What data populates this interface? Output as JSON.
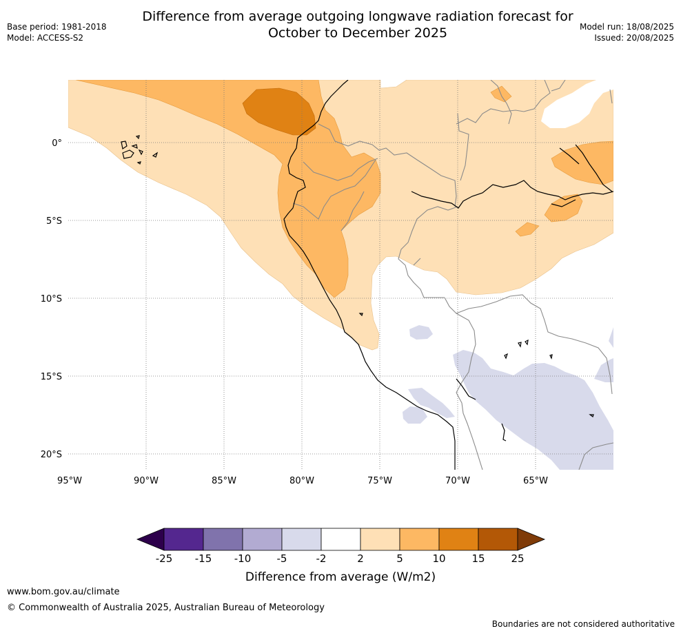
{
  "title": {
    "line1": "Difference from average outgoing longwave radiation forecast for",
    "line2": "October to December 2025"
  },
  "meta_left": {
    "base_period": "Base period: 1981-2018",
    "model": "Model: ACCESS-S2"
  },
  "meta_right": {
    "model_run": "Model run: 18/08/2025",
    "issued": "Issued: 20/08/2025"
  },
  "map": {
    "lon_labels": [
      "95°W",
      "90°W",
      "85°W",
      "80°W",
      "75°W",
      "70°W",
      "65°W"
    ],
    "lat_labels": [
      "0°",
      "5°S",
      "10°S",
      "15°S",
      "20°S"
    ],
    "extent": {
      "lon_min": -95,
      "lon_max": -60,
      "lat_min": -21,
      "lat_max": 4
    }
  },
  "colorbar": {
    "title": "Difference from average (W/m2)",
    "ticks": [
      "-25",
      "-15",
      "-10",
      "-5",
      "-2",
      "2",
      "5",
      "10",
      "15",
      "25"
    ],
    "bins": [
      {
        "from": "-25",
        "to": "-15",
        "color": "#54278f"
      },
      {
        "from": "-15",
        "to": "-10",
        "color": "#8073ac"
      },
      {
        "from": "-10",
        "to": "-5",
        "color": "#b2abd2"
      },
      {
        "from": "-5",
        "to": "-2",
        "color": "#d8daeb"
      },
      {
        "from": "-2",
        "to": "2",
        "color": "#ffffff"
      },
      {
        "from": "2",
        "to": "5",
        "color": "#fee0b6"
      },
      {
        "from": "5",
        "to": "10",
        "color": "#fdb863"
      },
      {
        "from": "10",
        "to": "15",
        "color": "#e08214"
      },
      {
        "from": "15",
        "to": "25",
        "color": "#b35806"
      }
    ],
    "extend_low_color": "#2d004b",
    "extend_high_color": "#7f3b08"
  },
  "footer": {
    "website": "www.bom.gov.au/climate",
    "copyright": "© Commonwealth of Australia 2025, Australian Bureau of Meteorology",
    "disclaimer": "Boundaries are not considered authoritative"
  }
}
